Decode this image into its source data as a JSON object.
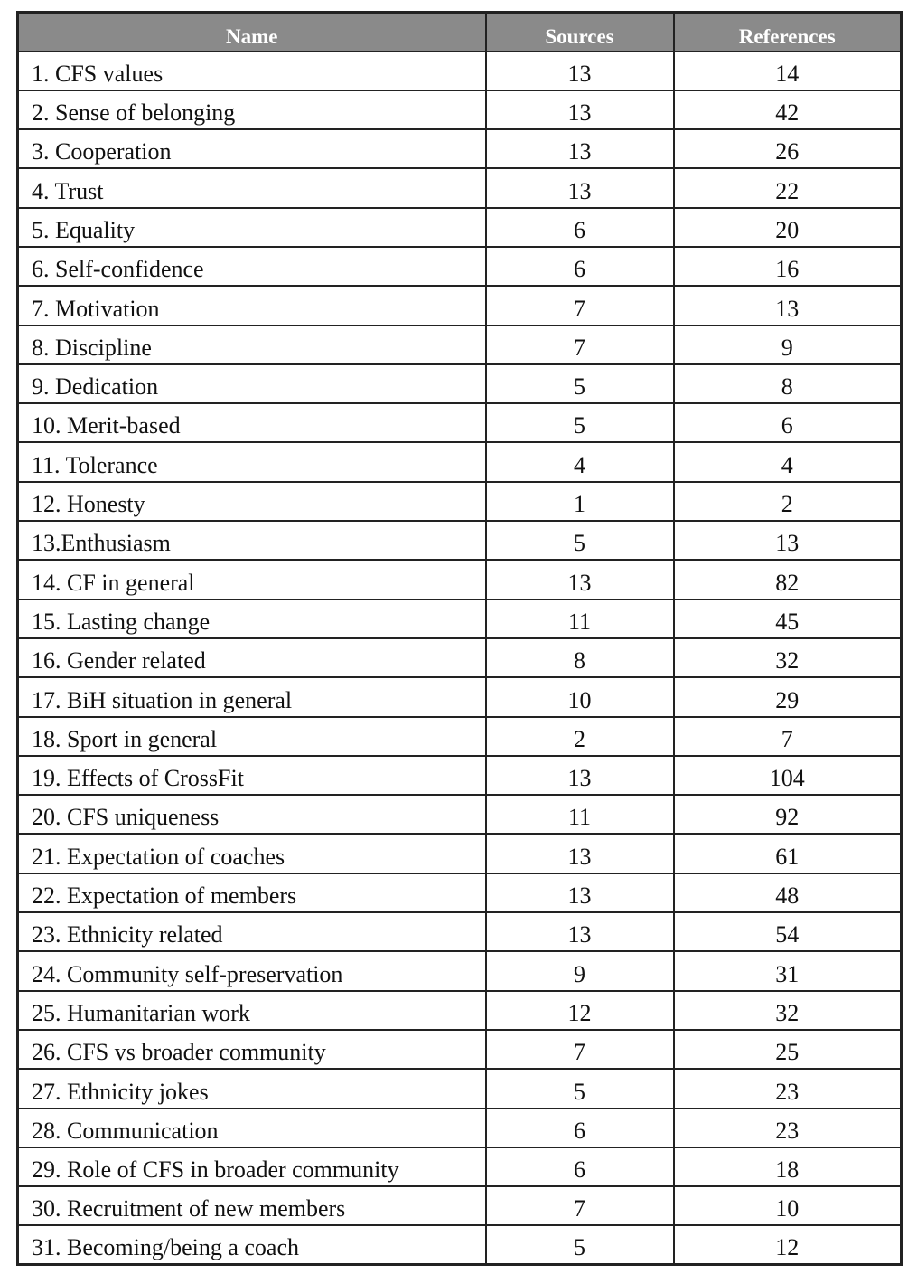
{
  "table": {
    "header": [
      "Name",
      "Sources",
      "References"
    ],
    "rows": [
      [
        "1. CFS values",
        13,
        14
      ],
      [
        "2. Sense of belonging",
        13,
        42
      ],
      [
        "3. Cooperation",
        13,
        26
      ],
      [
        "4. Trust",
        13,
        22
      ],
      [
        "5. Equality",
        6,
        20
      ],
      [
        "6. Self-confidence",
        6,
        16
      ],
      [
        "7. Motivation",
        7,
        13
      ],
      [
        "8. Discipline",
        7,
        9
      ],
      [
        "9. Dedication",
        5,
        8
      ],
      [
        "10. Merit-based",
        5,
        6
      ],
      [
        "11. Tolerance",
        4,
        4
      ],
      [
        "12. Honesty",
        1,
        2
      ],
      [
        "13.Enthusiasm",
        5,
        13
      ],
      [
        "14. CF in general",
        13,
        82
      ],
      [
        "15. Lasting change",
        11,
        45
      ],
      [
        "16. Gender related",
        8,
        32
      ],
      [
        "17. BiH situation in general",
        10,
        29
      ],
      [
        "18. Sport in general",
        2,
        7
      ],
      [
        "19. Effects of CrossFit",
        13,
        104
      ],
      [
        "20. CFS uniqueness",
        11,
        92
      ],
      [
        "21. Expectation of coaches",
        13,
        61
      ],
      [
        "22. Expectation of members",
        13,
        48
      ],
      [
        "23. Ethnicity related",
        13,
        54
      ],
      [
        "24. Community self-preservation",
        9,
        31
      ],
      [
        "25. Humanitarian work",
        12,
        32
      ],
      [
        "26. CFS vs broader community",
        7,
        25
      ],
      [
        "27. Ethnicity jokes",
        5,
        23
      ],
      [
        "28. Communication",
        6,
        23
      ],
      [
        "29. Role of CFS in broader community",
        6,
        18
      ],
      [
        "30. Recruitment of new members",
        7,
        10
      ],
      [
        "31. Becoming/being a coach",
        5,
        12
      ]
    ]
  }
}
